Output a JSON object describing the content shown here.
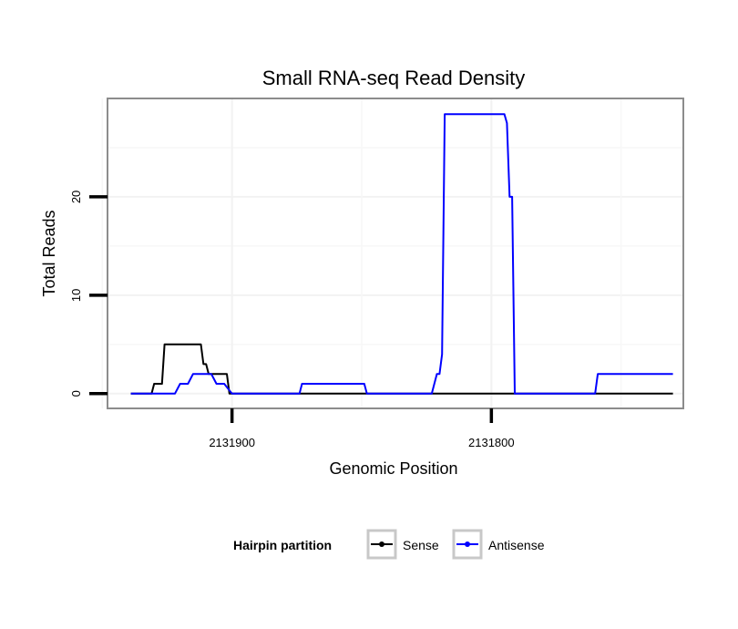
{
  "chart_data": {
    "type": "line",
    "title": "Small RNA-seq Read Density",
    "xlabel": "Genomic Position",
    "ylabel": "Total Reads",
    "x_reversed": true,
    "xlim": [
      2131948,
      2131726
    ],
    "ylim": [
      -1.5,
      30
    ],
    "x_ticks": [
      2131900,
      2131800
    ],
    "x_tick_labels": [
      "2131900",
      "2131800"
    ],
    "y_ticks": [
      0,
      10,
      20
    ],
    "y_tick_labels": [
      "0",
      "10",
      "20"
    ],
    "grid": true,
    "legend": {
      "title": "Hairpin partition",
      "position": "bottom",
      "entries": [
        {
          "name": "Sense",
          "color": "#000000"
        },
        {
          "name": "Antisense",
          "color": "#0000ff"
        }
      ]
    },
    "series": [
      {
        "name": "Sense",
        "color": "#000000",
        "x": [
          2131939,
          2131931,
          2131930,
          2131927,
          2131926,
          2131912,
          2131911,
          2131910,
          2131909,
          2131902,
          2131901,
          2131900,
          2131890,
          2131730
        ],
        "y": [
          0,
          0,
          1,
          1,
          5,
          5,
          3,
          3,
          2,
          2,
          0,
          0,
          0,
          0
        ]
      },
      {
        "name": "Antisense",
        "color": "#0000ff",
        "x": [
          2131939,
          2131922,
          2131920,
          2131917,
          2131915,
          2131908,
          2131906,
          2131903,
          2131900,
          2131900,
          2131895,
          2131874,
          2131873,
          2131849,
          2131848,
          2131823,
          2131821,
          2131820,
          2131819,
          2131818,
          2131800,
          2131795,
          2131794,
          2131793,
          2131792,
          2131791,
          2131790,
          2131787,
          2131760,
          2131759,
          2131730
        ],
        "y": [
          0,
          0,
          1,
          1,
          2,
          2,
          1,
          1,
          0,
          0,
          0,
          0,
          1,
          1,
          0,
          0,
          2,
          2,
          4,
          28.4,
          28.4,
          28.4,
          27.5,
          20,
          20,
          0,
          0,
          0,
          0,
          2,
          2
        ]
      }
    ]
  }
}
